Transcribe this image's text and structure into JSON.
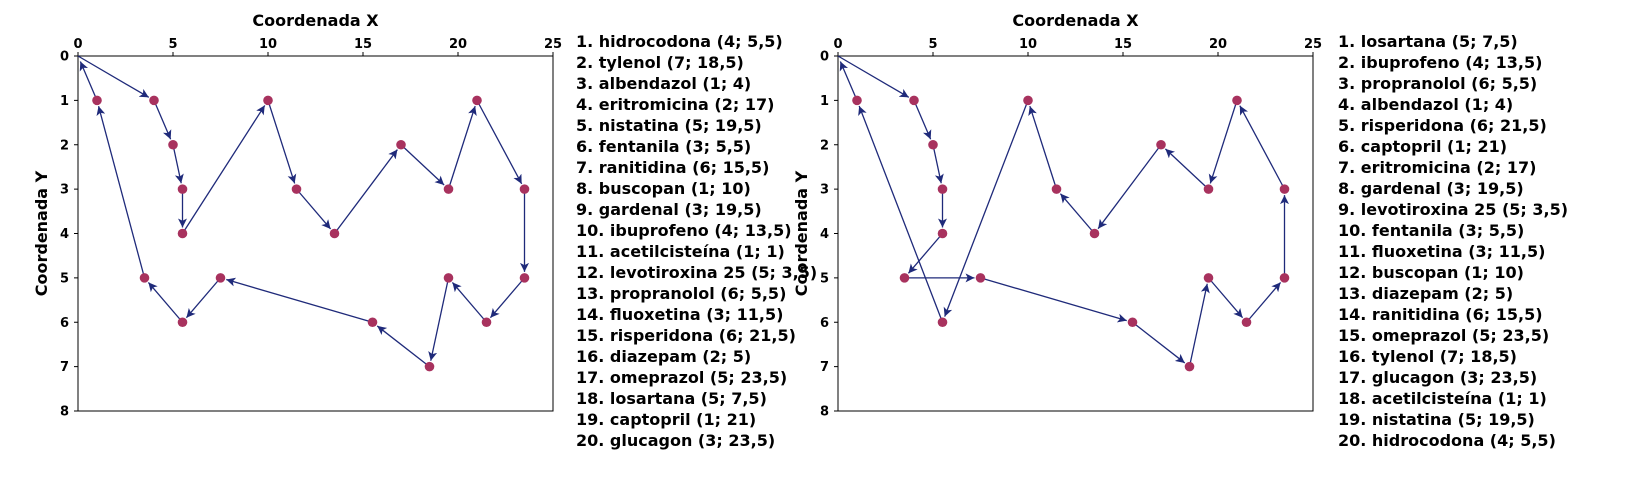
{
  "chart_data": [
    {
      "type": "scatter",
      "xlabel": "Coordenada X",
      "ylabel": "Coordenada Y",
      "xlim": [
        0,
        25
      ],
      "ylim": [
        8,
        0
      ],
      "x_ticks": [
        0,
        5,
        10,
        15,
        20,
        25
      ],
      "y_ticks": [
        0,
        1,
        2,
        3,
        4,
        5,
        6,
        7,
        8
      ],
      "grid": false,
      "x_axis_position": "top",
      "y_axis_inverted": true,
      "legend_placement": "right",
      "colors": {
        "point": "#a8325e",
        "arrow": "#1f2a7a"
      },
      "origin": [
        0,
        0
      ],
      "points": [
        {
          "x": 1,
          "y": 1
        },
        {
          "x": 4,
          "y": 1
        },
        {
          "x": 10,
          "y": 1
        },
        {
          "x": 21,
          "y": 1
        },
        {
          "x": 5,
          "y": 2
        },
        {
          "x": 17,
          "y": 2
        },
        {
          "x": 5.5,
          "y": 3
        },
        {
          "x": 11.5,
          "y": 3
        },
        {
          "x": 19.5,
          "y": 3
        },
        {
          "x": 23.5,
          "y": 3
        },
        {
          "x": 5.5,
          "y": 4
        },
        {
          "x": 13.5,
          "y": 4
        },
        {
          "x": 3.5,
          "y": 5
        },
        {
          "x": 7.5,
          "y": 5
        },
        {
          "x": 19.5,
          "y": 5
        },
        {
          "x": 23.5,
          "y": 5
        },
        {
          "x": 5.5,
          "y": 6
        },
        {
          "x": 15.5,
          "y": 6
        },
        {
          "x": 21.5,
          "y": 6
        },
        {
          "x": 18.5,
          "y": 7
        }
      ],
      "route": [
        [
          0,
          0
        ],
        [
          4,
          1
        ],
        [
          5,
          2
        ],
        [
          5.5,
          3
        ],
        [
          5.5,
          4
        ],
        [
          10,
          1
        ],
        [
          11.5,
          3
        ],
        [
          13.5,
          4
        ],
        [
          17,
          2
        ],
        [
          19.5,
          3
        ],
        [
          21,
          1
        ],
        [
          23.5,
          3
        ],
        [
          23.5,
          5
        ],
        [
          21.5,
          6
        ],
        [
          19.5,
          5
        ],
        [
          18.5,
          7
        ],
        [
          15.5,
          6
        ],
        [
          7.5,
          5
        ],
        [
          5.5,
          6
        ],
        [
          3.5,
          5
        ],
        [
          1,
          1
        ],
        [
          0,
          0
        ]
      ],
      "legend": [
        "1. hidrocodona (4; 5,5)",
        "2. tylenol (7; 18,5)",
        "3. albendazol (1; 4)",
        "4. eritromicina (2; 17)",
        "5. nistatina (5; 19,5)",
        "6. fentanila (3; 5,5)",
        "7. ranitidina (6; 15,5)",
        "8. buscopan (1; 10)",
        "9. gardenal (3; 19,5)",
        "10. ibuprofeno (4; 13,5)",
        "11. acetilcisteína (1; 1)",
        "12. levotiroxina 25 (5; 3,5)",
        "13. propranolol (6; 5,5)",
        "14. fluoxetina (3; 11,5)",
        "15. risperidona (6; 21,5)",
        "16. diazepam (2; 5)",
        "17. omeprazol (5; 23,5)",
        "18. losartana (5; 7,5)",
        "19. captopril (1; 21)",
        "20. glucagon (3; 23,5)"
      ]
    },
    {
      "type": "scatter",
      "xlabel": "Coordenada X",
      "ylabel": "Coordenada Y",
      "xlim": [
        0,
        25
      ],
      "ylim": [
        8,
        0
      ],
      "x_ticks": [
        0,
        5,
        10,
        15,
        20,
        25
      ],
      "y_ticks": [
        0,
        1,
        2,
        3,
        4,
        5,
        6,
        7,
        8
      ],
      "grid": false,
      "x_axis_position": "top",
      "y_axis_inverted": true,
      "legend_placement": "right",
      "colors": {
        "point": "#a8325e",
        "arrow": "#1f2a7a"
      },
      "origin": [
        0,
        0
      ],
      "points": [
        {
          "x": 1,
          "y": 1
        },
        {
          "x": 4,
          "y": 1
        },
        {
          "x": 10,
          "y": 1
        },
        {
          "x": 21,
          "y": 1
        },
        {
          "x": 5,
          "y": 2
        },
        {
          "x": 17,
          "y": 2
        },
        {
          "x": 5.5,
          "y": 3
        },
        {
          "x": 11.5,
          "y": 3
        },
        {
          "x": 19.5,
          "y": 3
        },
        {
          "x": 23.5,
          "y": 3
        },
        {
          "x": 5.5,
          "y": 4
        },
        {
          "x": 13.5,
          "y": 4
        },
        {
          "x": 3.5,
          "y": 5
        },
        {
          "x": 7.5,
          "y": 5
        },
        {
          "x": 19.5,
          "y": 5
        },
        {
          "x": 23.5,
          "y": 5
        },
        {
          "x": 5.5,
          "y": 6
        },
        {
          "x": 15.5,
          "y": 6
        },
        {
          "x": 21.5,
          "y": 6
        },
        {
          "x": 18.5,
          "y": 7
        }
      ],
      "route": [
        [
          0,
          0
        ],
        [
          4,
          1
        ],
        [
          5,
          2
        ],
        [
          5.5,
          3
        ],
        [
          5.5,
          4
        ],
        [
          3.5,
          5
        ],
        [
          7.5,
          5
        ],
        [
          15.5,
          6
        ],
        [
          18.5,
          7
        ],
        [
          19.5,
          5
        ],
        [
          21.5,
          6
        ],
        [
          23.5,
          5
        ],
        [
          23.5,
          3
        ],
        [
          21,
          1
        ],
        [
          19.5,
          3
        ],
        [
          17,
          2
        ],
        [
          13.5,
          4
        ],
        [
          11.5,
          3
        ],
        [
          10,
          1
        ],
        [
          5.5,
          6
        ],
        [
          1,
          1
        ],
        [
          0,
          0
        ]
      ],
      "legend": [
        "1. losartana (5; 7,5)",
        "2. ibuprofeno (4; 13,5)",
        "3. propranolol (6; 5,5)",
        "4. albendazol (1; 4)",
        "5. risperidona (6; 21,5)",
        "6. captopril (1; 21)",
        "7. eritromicina (2; 17)",
        "8. gardenal (3; 19,5)",
        "9. levotiroxina 25 (5; 3,5)",
        "10. fentanila (3; 5,5)",
        "11. fluoxetina (3; 11,5)",
        "12. buscopan (1; 10)",
        "13. diazepam (2; 5)",
        "14. ranitidina (6; 15,5)",
        "15. omeprazol (5; 23,5)",
        "16. tylenol (7; 18,5)",
        "17. glucagon (3; 23,5)",
        "18. acetilcisteína (1; 1)",
        "19. nistatina (5; 19,5)",
        "20. hidrocodona (4; 5,5)"
      ]
    }
  ]
}
